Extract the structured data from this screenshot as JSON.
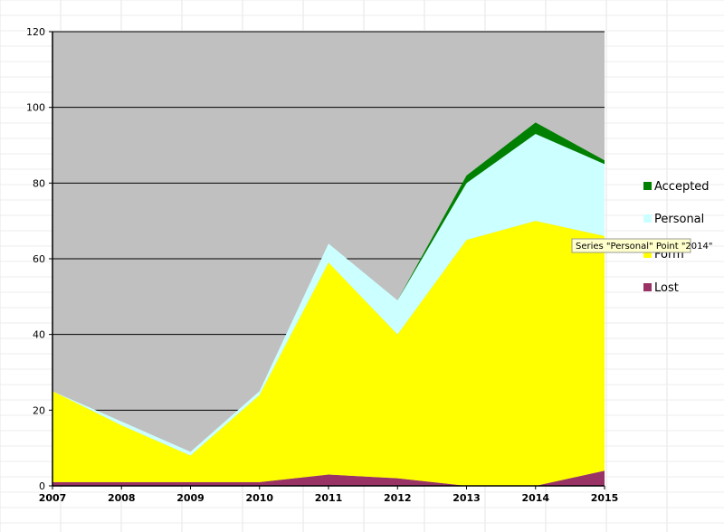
{
  "chart_data": {
    "type": "area",
    "stacked": true,
    "x": [
      "2007",
      "2008",
      "2009",
      "2010",
      "2011",
      "2012",
      "2013",
      "2014",
      "2015"
    ],
    "series": [
      {
        "name": "Lost",
        "color": "#993366",
        "values": [
          1,
          1,
          1,
          1,
          3,
          2,
          0,
          0,
          4
        ]
      },
      {
        "name": "Form",
        "color": "#ffff00",
        "values": [
          24,
          15,
          7,
          23,
          56,
          38,
          65,
          70,
          62
        ]
      },
      {
        "name": "Personal",
        "color": "#ccffff",
        "values": [
          0,
          1,
          1,
          1,
          5,
          9,
          15,
          23,
          19
        ]
      },
      {
        "name": "Accepted",
        "color": "#008000",
        "values": [
          0,
          0,
          0,
          0,
          0,
          0,
          2,
          3,
          1
        ]
      }
    ],
    "yticks": [
      "0",
      "20",
      "40",
      "60",
      "80",
      "100",
      "120"
    ],
    "ylim": [
      0,
      120
    ],
    "grid": true,
    "plot_background": "#c0c0c0",
    "legend_position": "right",
    "legend_order": [
      "Accepted",
      "Personal",
      "Form",
      "Lost"
    ]
  },
  "tooltip": {
    "text": "Series \"Personal\" Point \"2014\""
  }
}
